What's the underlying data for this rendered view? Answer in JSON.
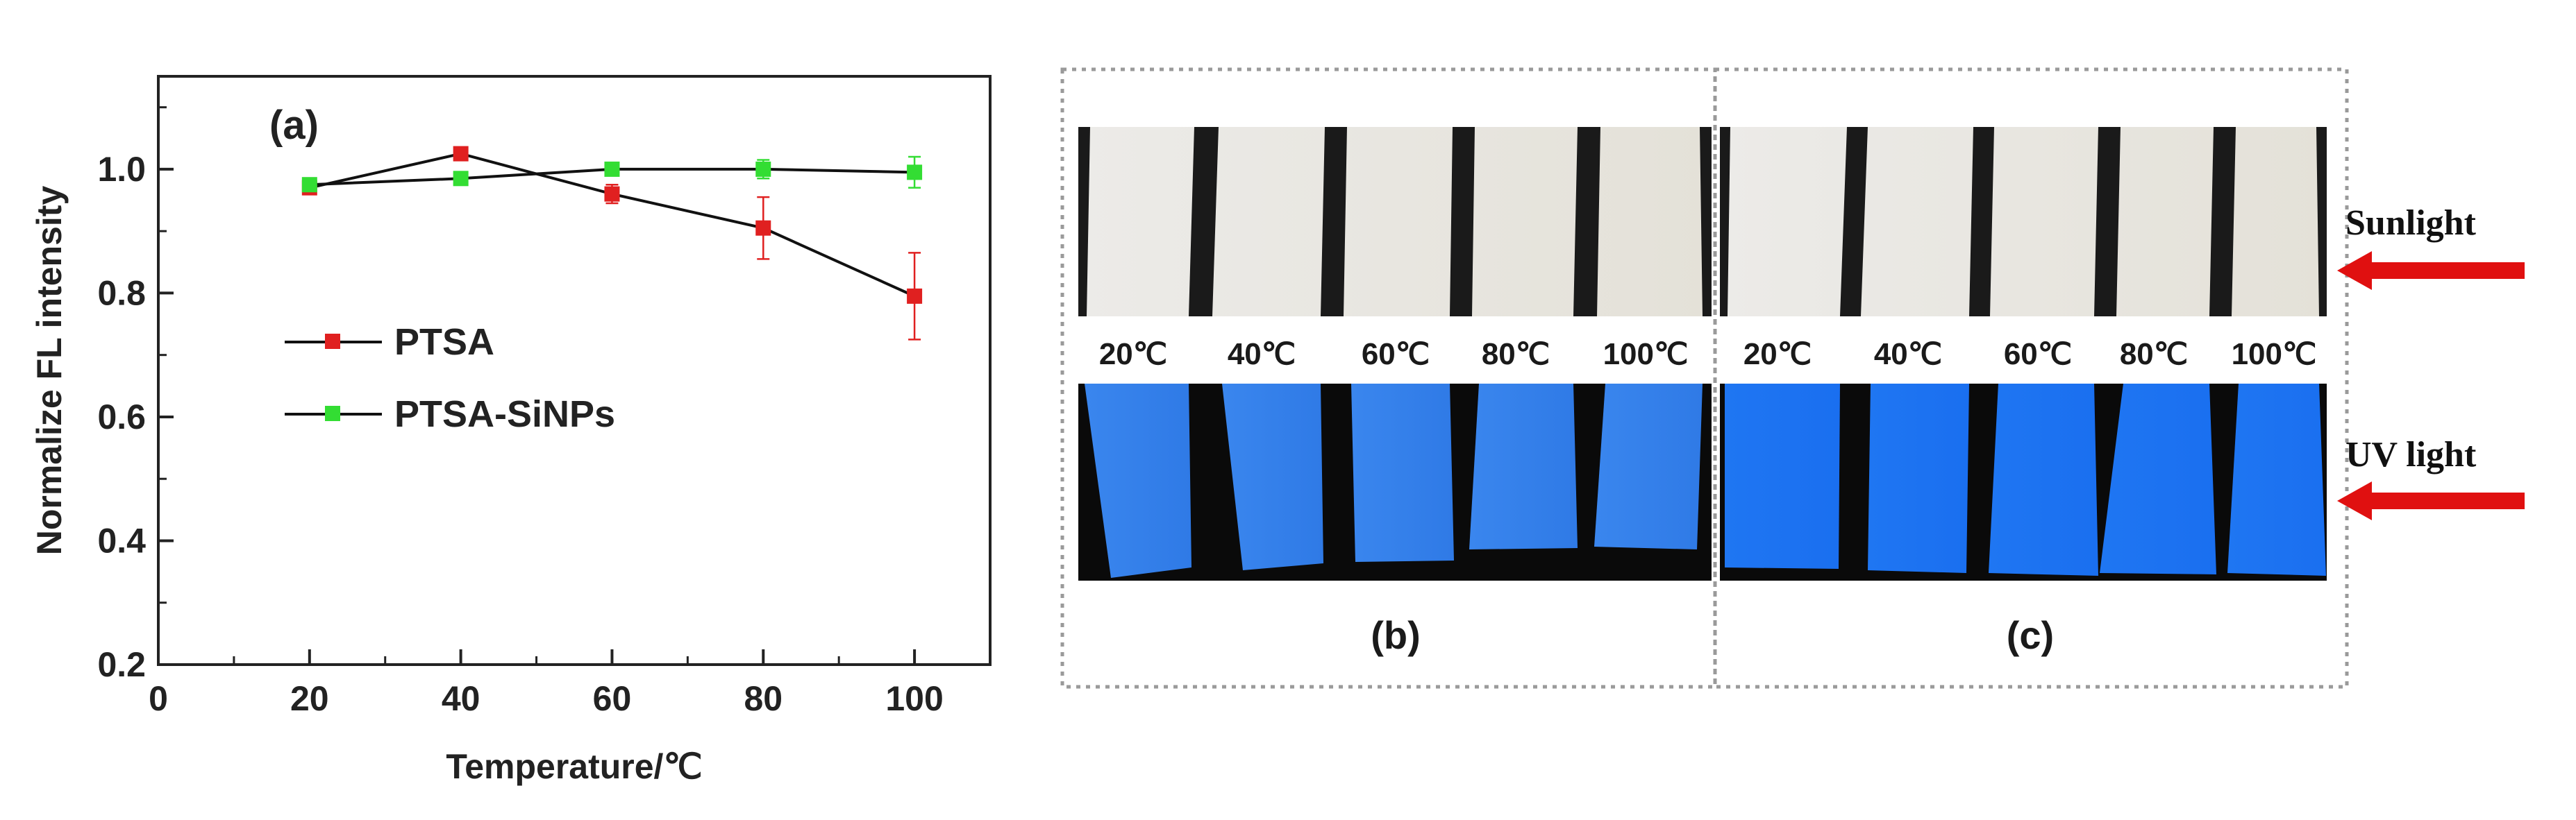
{
  "chart_data": {
    "type": "line",
    "panel_label": "(a)",
    "xlabel": "Temperature/℃",
    "ylabel": "Normalize FL intensity",
    "xlim": [
      0,
      110
    ],
    "ylim": [
      0.2,
      1.15
    ],
    "x_ticks": [
      0,
      20,
      40,
      60,
      80,
      100
    ],
    "y_ticks": [
      0.2,
      0.4,
      0.6,
      0.8,
      1.0
    ],
    "x_tick_labels": [
      "0",
      "20",
      "40",
      "60",
      "80",
      "100"
    ],
    "y_tick_labels": [
      "0.2",
      "0.4",
      "0.6",
      "0.8",
      "1.0"
    ],
    "legend_position": "center-left",
    "x": [
      20,
      40,
      60,
      80,
      100
    ],
    "series": [
      {
        "name": "PTSA",
        "values": [
          0.97,
          1.025,
          0.96,
          0.905,
          0.795
        ],
        "errors": [
          0.0,
          0.01,
          0.015,
          0.05,
          0.07
        ],
        "marker_color": "#e02020"
      },
      {
        "name": "PTSA-SiNPs",
        "values": [
          0.975,
          0.985,
          1.0,
          1.0,
          0.995
        ],
        "errors": [
          0.01,
          0.005,
          0.01,
          0.015,
          0.025
        ],
        "marker_color": "#33dd33"
      }
    ]
  },
  "photos": {
    "temperature_labels": [
      "20℃",
      "40℃",
      "60℃",
      "80℃",
      "100℃"
    ],
    "panel_b_label": "(b)",
    "panel_c_label": "(c)",
    "sunlight_label": "Sunlight",
    "uv_label": "UV light",
    "arrow_color": "#e01010",
    "sunlight_strip_color": "#e8e6e0",
    "uv_strip_color": "#2e7fe8"
  }
}
